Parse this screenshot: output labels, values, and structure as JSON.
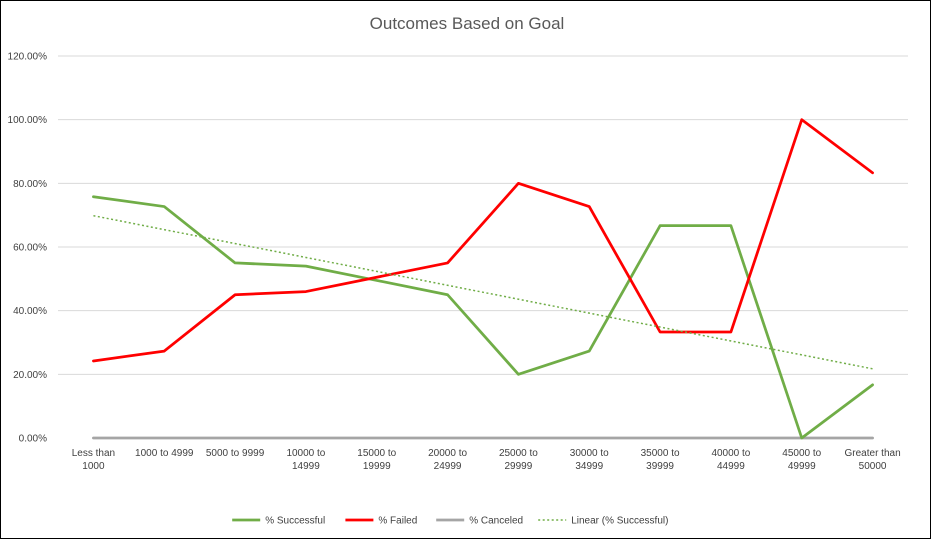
{
  "chart_data": {
    "type": "line",
    "title": "Outcomes Based on Goal",
    "xlabel": "",
    "ylabel": "",
    "ylim": [
      0,
      120
    ],
    "y_ticks": [
      "0.00%",
      "20.00%",
      "40.00%",
      "60.00%",
      "80.00%",
      "100.00%",
      "120.00%"
    ],
    "y_tick_values": [
      0,
      20,
      40,
      60,
      80,
      100,
      120
    ],
    "categories": [
      [
        "Less than",
        "1000"
      ],
      [
        "1000 to 4999"
      ],
      [
        "5000 to 9999"
      ],
      [
        "10000 to",
        "14999"
      ],
      [
        "15000 to",
        "19999"
      ],
      [
        "20000 to",
        "24999"
      ],
      [
        "25000 to",
        "29999"
      ],
      [
        "30000 to",
        "34999"
      ],
      [
        "35000 to",
        "39999"
      ],
      [
        "40000 to",
        "44999"
      ],
      [
        "45000 to",
        "49999"
      ],
      [
        "Greater than",
        "50000"
      ]
    ],
    "series": [
      {
        "name": "% Successful",
        "color": "#70AD47",
        "style": "solid",
        "values": [
          75.8,
          72.7,
          55.0,
          54.0,
          49.5,
          45.0,
          20.0,
          27.3,
          66.7,
          66.7,
          0.0,
          16.7
        ]
      },
      {
        "name": "% Failed",
        "color": "#FF0000",
        "style": "solid",
        "values": [
          24.2,
          27.3,
          45.0,
          46.0,
          50.5,
          55.0,
          80.0,
          72.7,
          33.3,
          33.3,
          100.0,
          83.3
        ]
      },
      {
        "name": "% Canceled",
        "color": "#A5A5A5",
        "style": "solid",
        "values": [
          0,
          0,
          0,
          0,
          0,
          0,
          0,
          0,
          0,
          0,
          0,
          0
        ]
      }
    ],
    "trendline": {
      "name": "Linear (% Successful)",
      "color": "#70AD47",
      "style": "dotted",
      "type": "linear",
      "of_series": "% Successful"
    },
    "grid": true,
    "legend_position": "bottom"
  }
}
